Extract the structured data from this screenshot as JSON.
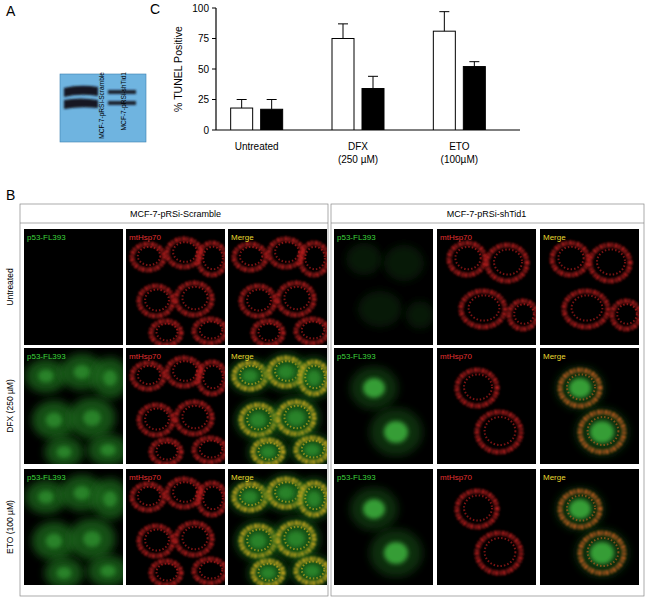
{
  "panel_labels": [
    "A",
    "B",
    "C"
  ],
  "blot": {
    "lanes": [
      "MCF-7-pRSi-Scramble",
      "MCF-7-pRSi-shTid1"
    ]
  },
  "microscopy": {
    "groups": [
      "MCF-7-pRSi-Scramble",
      "MCF-7-pRSi-shTid1"
    ],
    "rows": [
      "Untreated",
      "DFX (250 µM)",
      "ETO (100 µM)"
    ],
    "columns": [
      "p53-FL393",
      "mtHsp70",
      "Merge"
    ]
  },
  "chart_data": {
    "type": "bar",
    "y_label": "% TUNEL Positive",
    "categories": [
      "Untreated",
      "DFX\n(250 µM)",
      "ETO\n(100µM)"
    ],
    "series": [
      {
        "color": "#ffffff",
        "values": [
          18,
          75,
          81
        ],
        "errors": [
          7,
          12,
          16
        ]
      },
      {
        "color": "#000000",
        "values": [
          17,
          34,
          52
        ],
        "errors": [
          8,
          10,
          4
        ]
      }
    ],
    "ylim": [
      0,
      100
    ],
    "yticks": [
      0,
      25,
      50,
      75,
      100
    ],
    "grid": false
  }
}
